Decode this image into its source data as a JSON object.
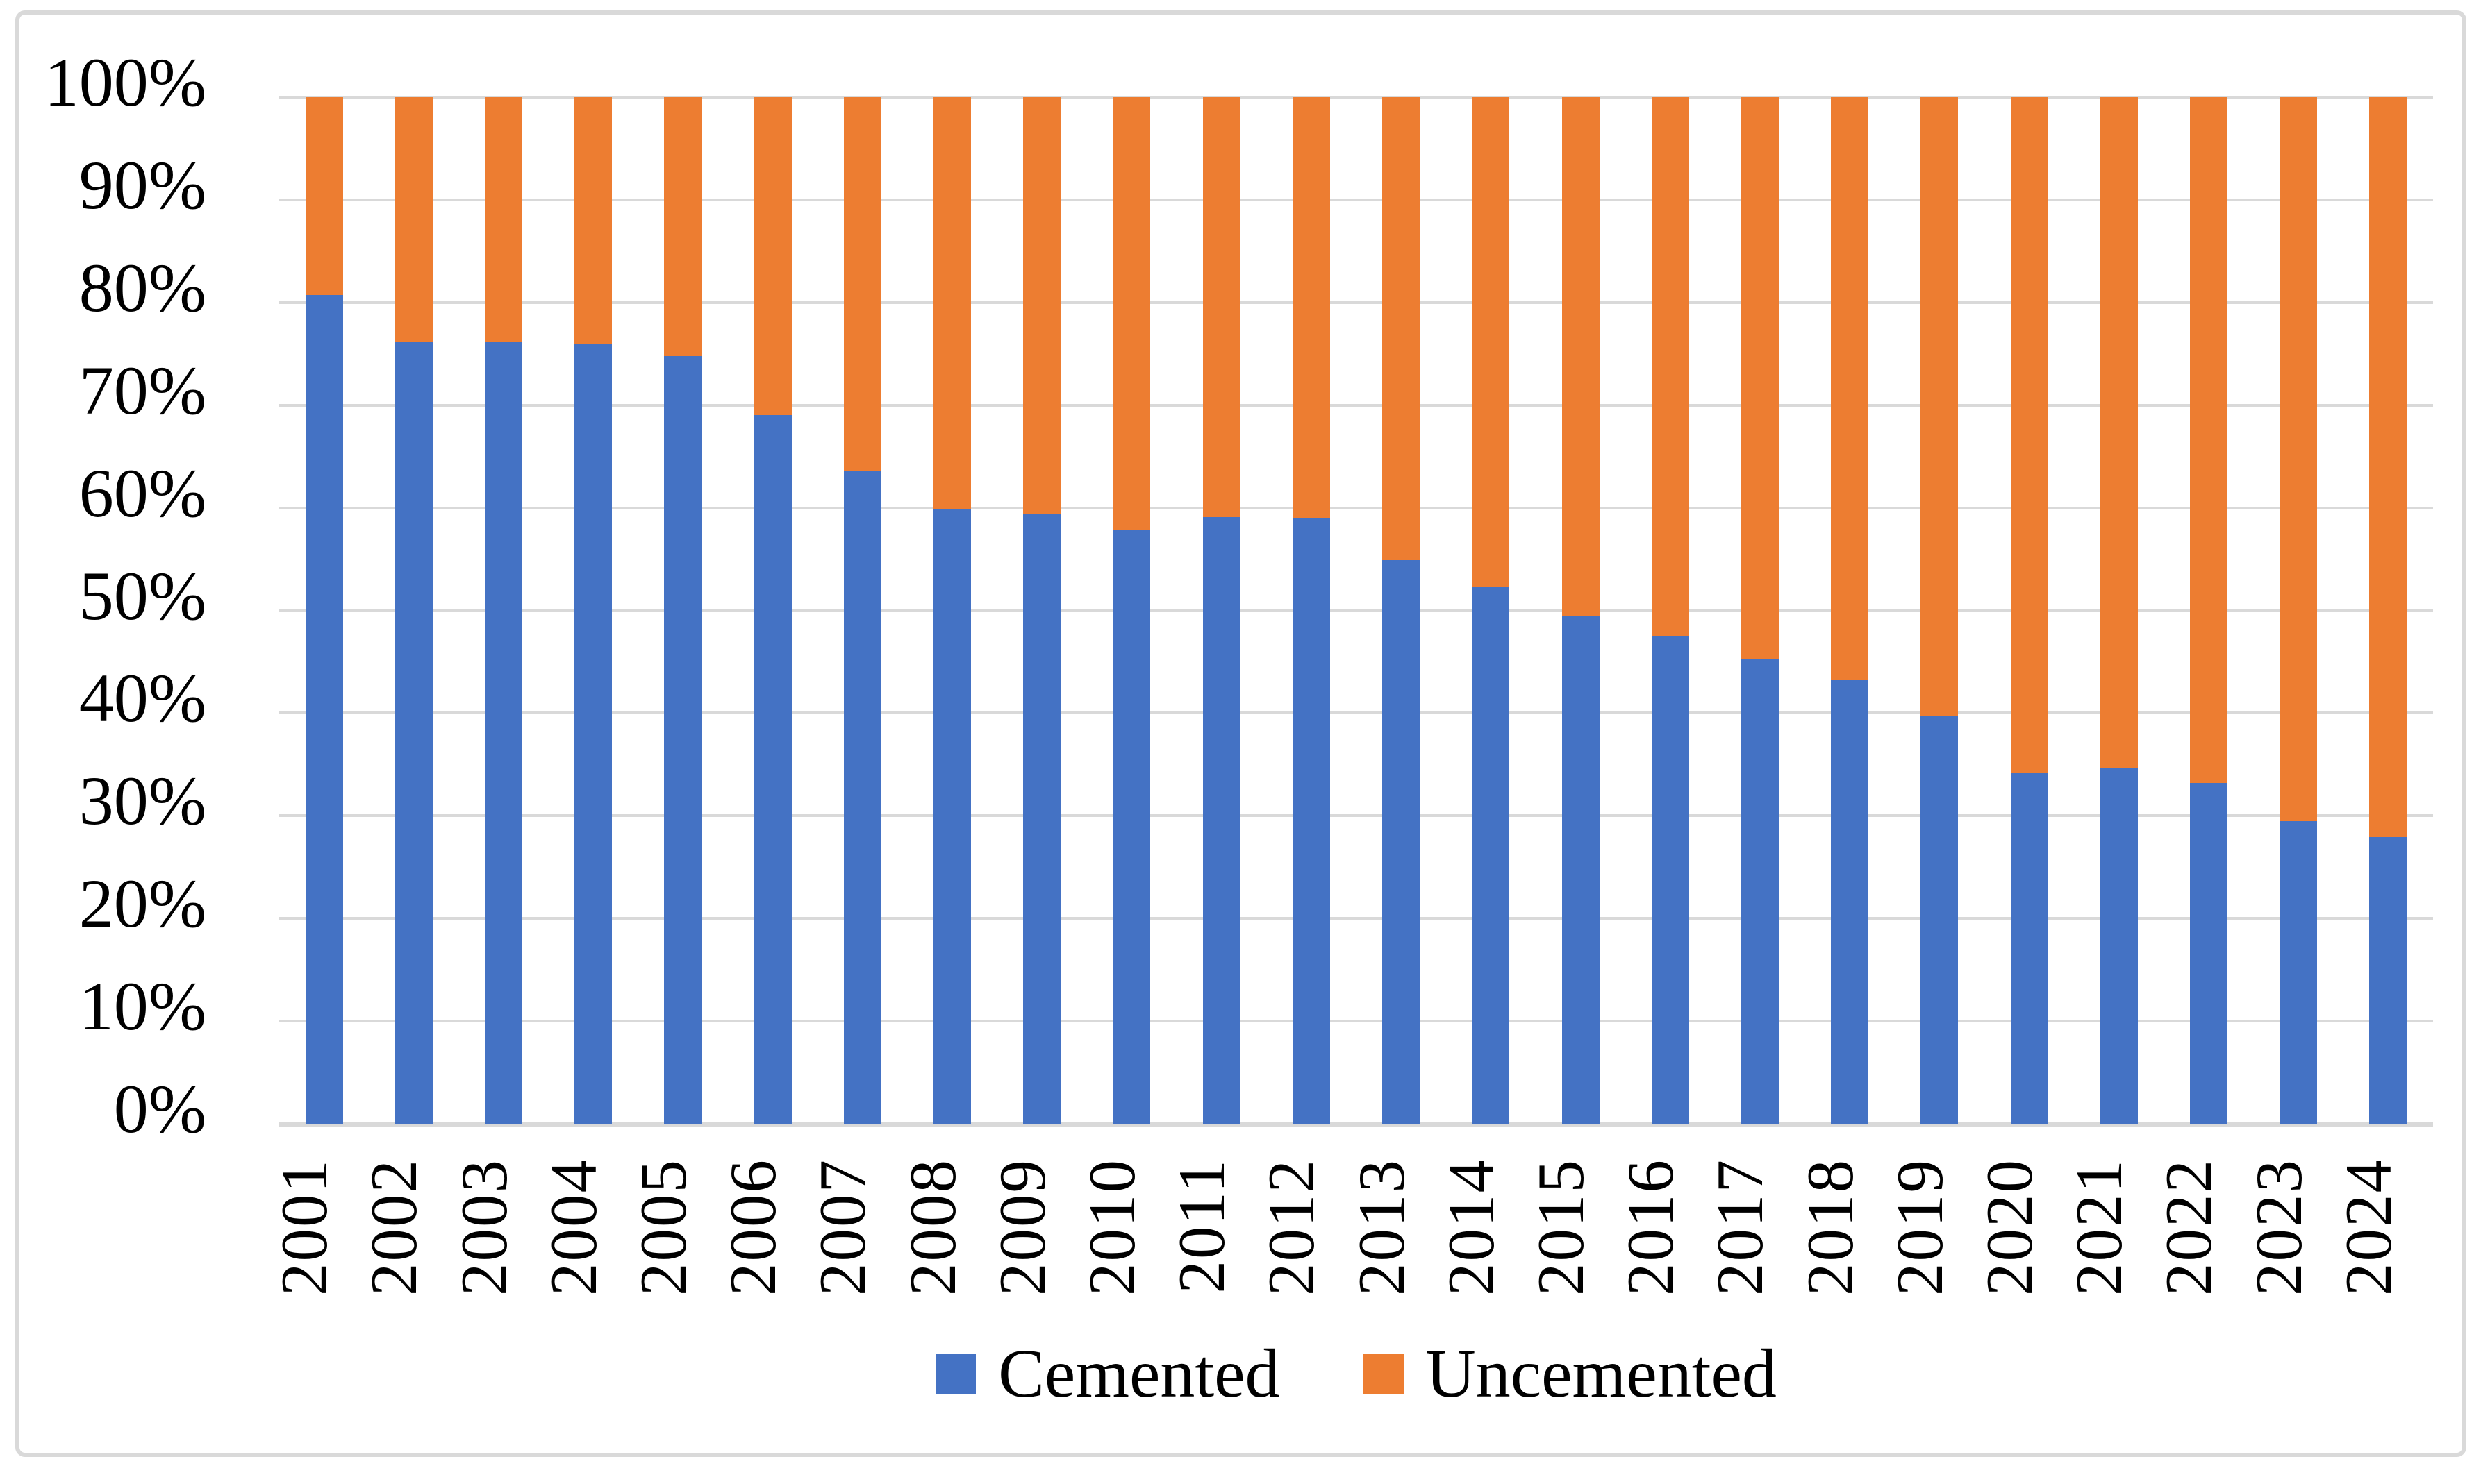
{
  "figure": {
    "background_color": "#ffffff",
    "border_color": "#d9d9d9"
  },
  "chart_data": {
    "type": "bar",
    "subtype": "stacked-100-percent-column",
    "title": "",
    "xlabel": "",
    "ylabel": "",
    "categories": [
      "2001",
      "2002",
      "2003",
      "2004",
      "2005",
      "2006",
      "2007",
      "2008",
      "2009",
      "2010",
      "2011",
      "2012",
      "2013",
      "2014",
      "2015",
      "2016",
      "2017",
      "2018",
      "2019",
      "2020",
      "2021",
      "2022",
      "2023",
      "2024"
    ],
    "series": [
      {
        "name": "Cemented",
        "color": "#4472c4",
        "values": [
          80.7,
          76.1,
          76.2,
          76.0,
          74.8,
          69.0,
          63.6,
          59.9,
          59.4,
          57.9,
          59.1,
          59.0,
          54.9,
          52.3,
          49.4,
          47.5,
          45.3,
          43.3,
          39.7,
          34.2,
          34.6,
          33.2,
          29.5,
          27.9
        ]
      },
      {
        "name": "Uncemented",
        "color": "#ed7d31",
        "values": [
          19.3,
          23.9,
          23.8,
          24.0,
          25.2,
          31.0,
          36.4,
          40.1,
          40.6,
          42.1,
          40.9,
          41.0,
          45.1,
          47.7,
          50.6,
          52.5,
          54.7,
          56.7,
          60.3,
          65.8,
          65.4,
          66.8,
          70.5,
          72.1
        ]
      }
    ],
    "y_axis": {
      "min": 0,
      "max": 100,
      "tick_step": 10,
      "tick_labels": [
        "0%",
        "10%",
        "20%",
        "30%",
        "40%",
        "50%",
        "60%",
        "70%",
        "80%",
        "90%",
        "100%"
      ],
      "gridlines": true,
      "gridline_color": "#d9d9d9"
    },
    "legend": {
      "position": "bottom",
      "items": [
        {
          "label": "Cemented",
          "color": "#4472c4"
        },
        {
          "label": "Uncemented",
          "color": "#ed7d31"
        }
      ]
    }
  }
}
